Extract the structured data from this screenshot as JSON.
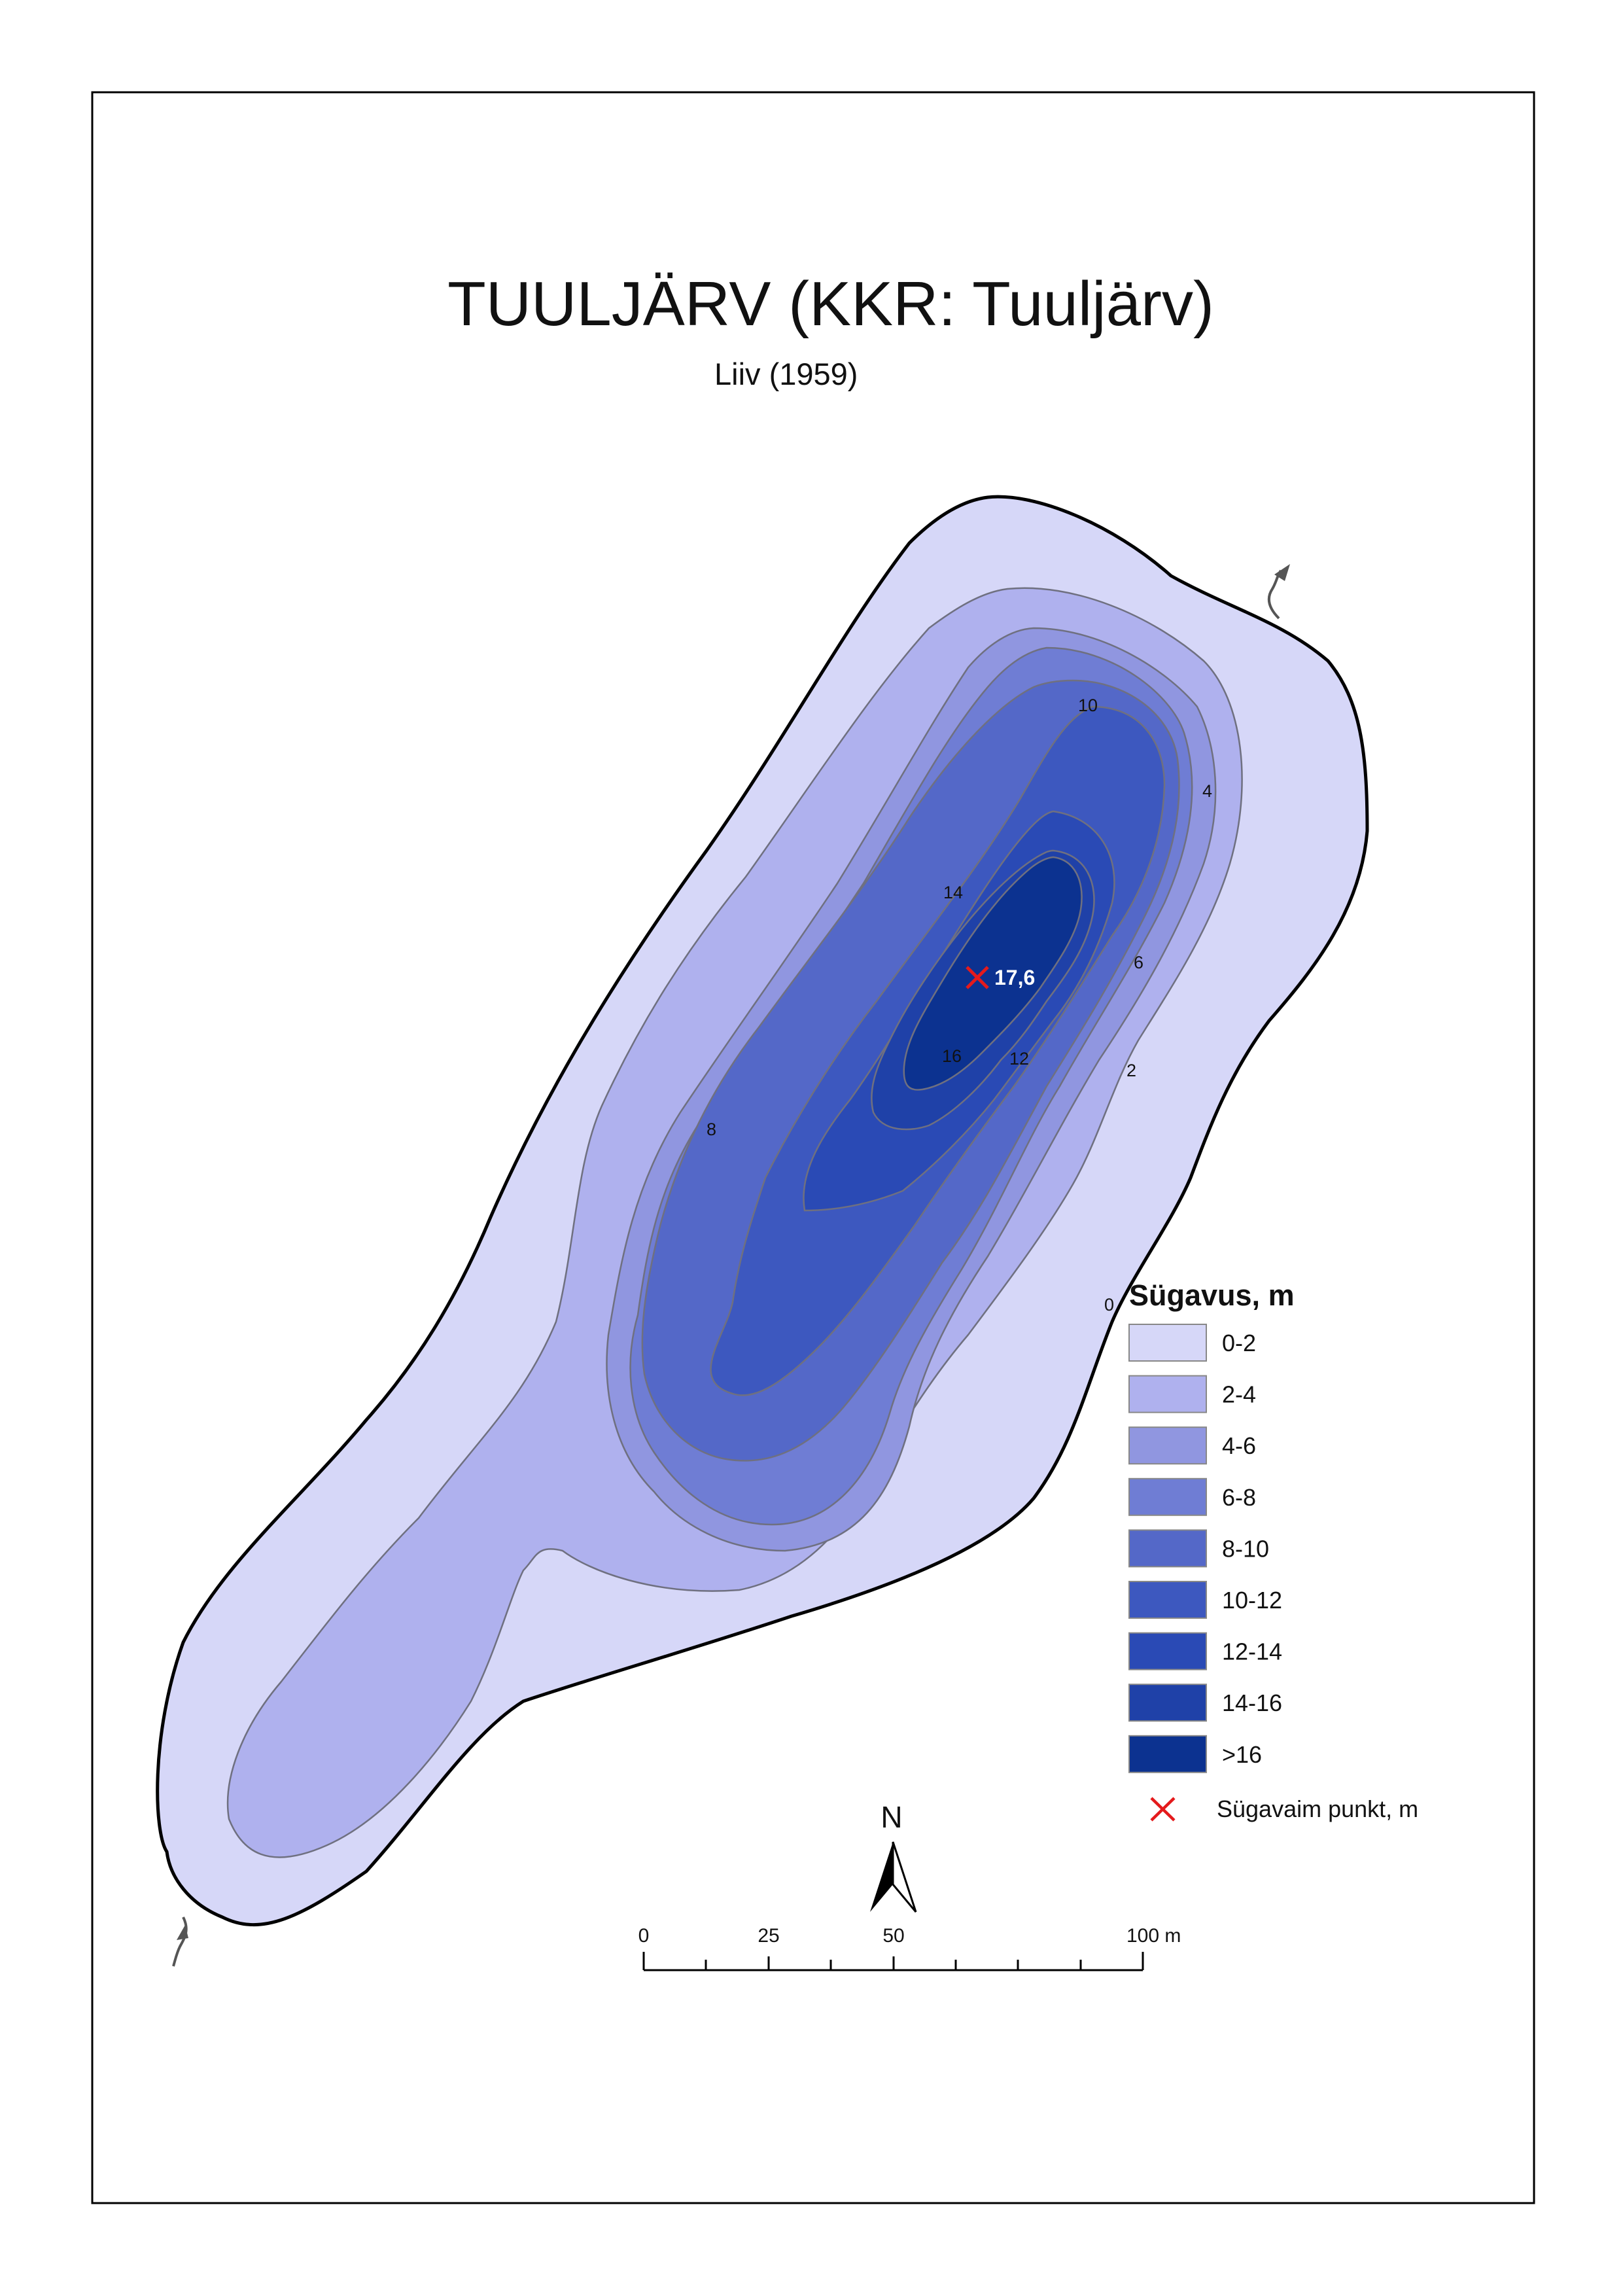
{
  "map": {
    "title": "TUULJÄRV (KKR: Tuuljärv)",
    "subtitle": "Liiv (1959)"
  },
  "contour_labels": [
    "0",
    "2",
    "4",
    "6",
    "8",
    "10",
    "12",
    "14",
    "16"
  ],
  "deepest_point": {
    "value_label": "17,6",
    "marker_color": "#e41a1c"
  },
  "legend": {
    "title": "Sügavus, m",
    "classes": [
      {
        "label": "0-2",
        "color": "#d6d7f8"
      },
      {
        "label": "2-4",
        "color": "#afb1ee"
      },
      {
        "label": "4-6",
        "color": "#9096e0"
      },
      {
        "label": "6-8",
        "color": "#6f7dd4"
      },
      {
        "label": "8-10",
        "color": "#5468c8"
      },
      {
        "label": "10-12",
        "color": "#3d58bf"
      },
      {
        "label": "12-14",
        "color": "#2a4ab5"
      },
      {
        "label": "14-16",
        "color": "#1f41a8"
      },
      {
        "label": ">16",
        "color": "#0c3290"
      }
    ],
    "deepest_label": "Sügavaim punkt, m"
  },
  "north_arrow": {
    "label": "N"
  },
  "scale_bar": {
    "ticks": [
      "0",
      "25",
      "50",
      "100 m"
    ]
  }
}
